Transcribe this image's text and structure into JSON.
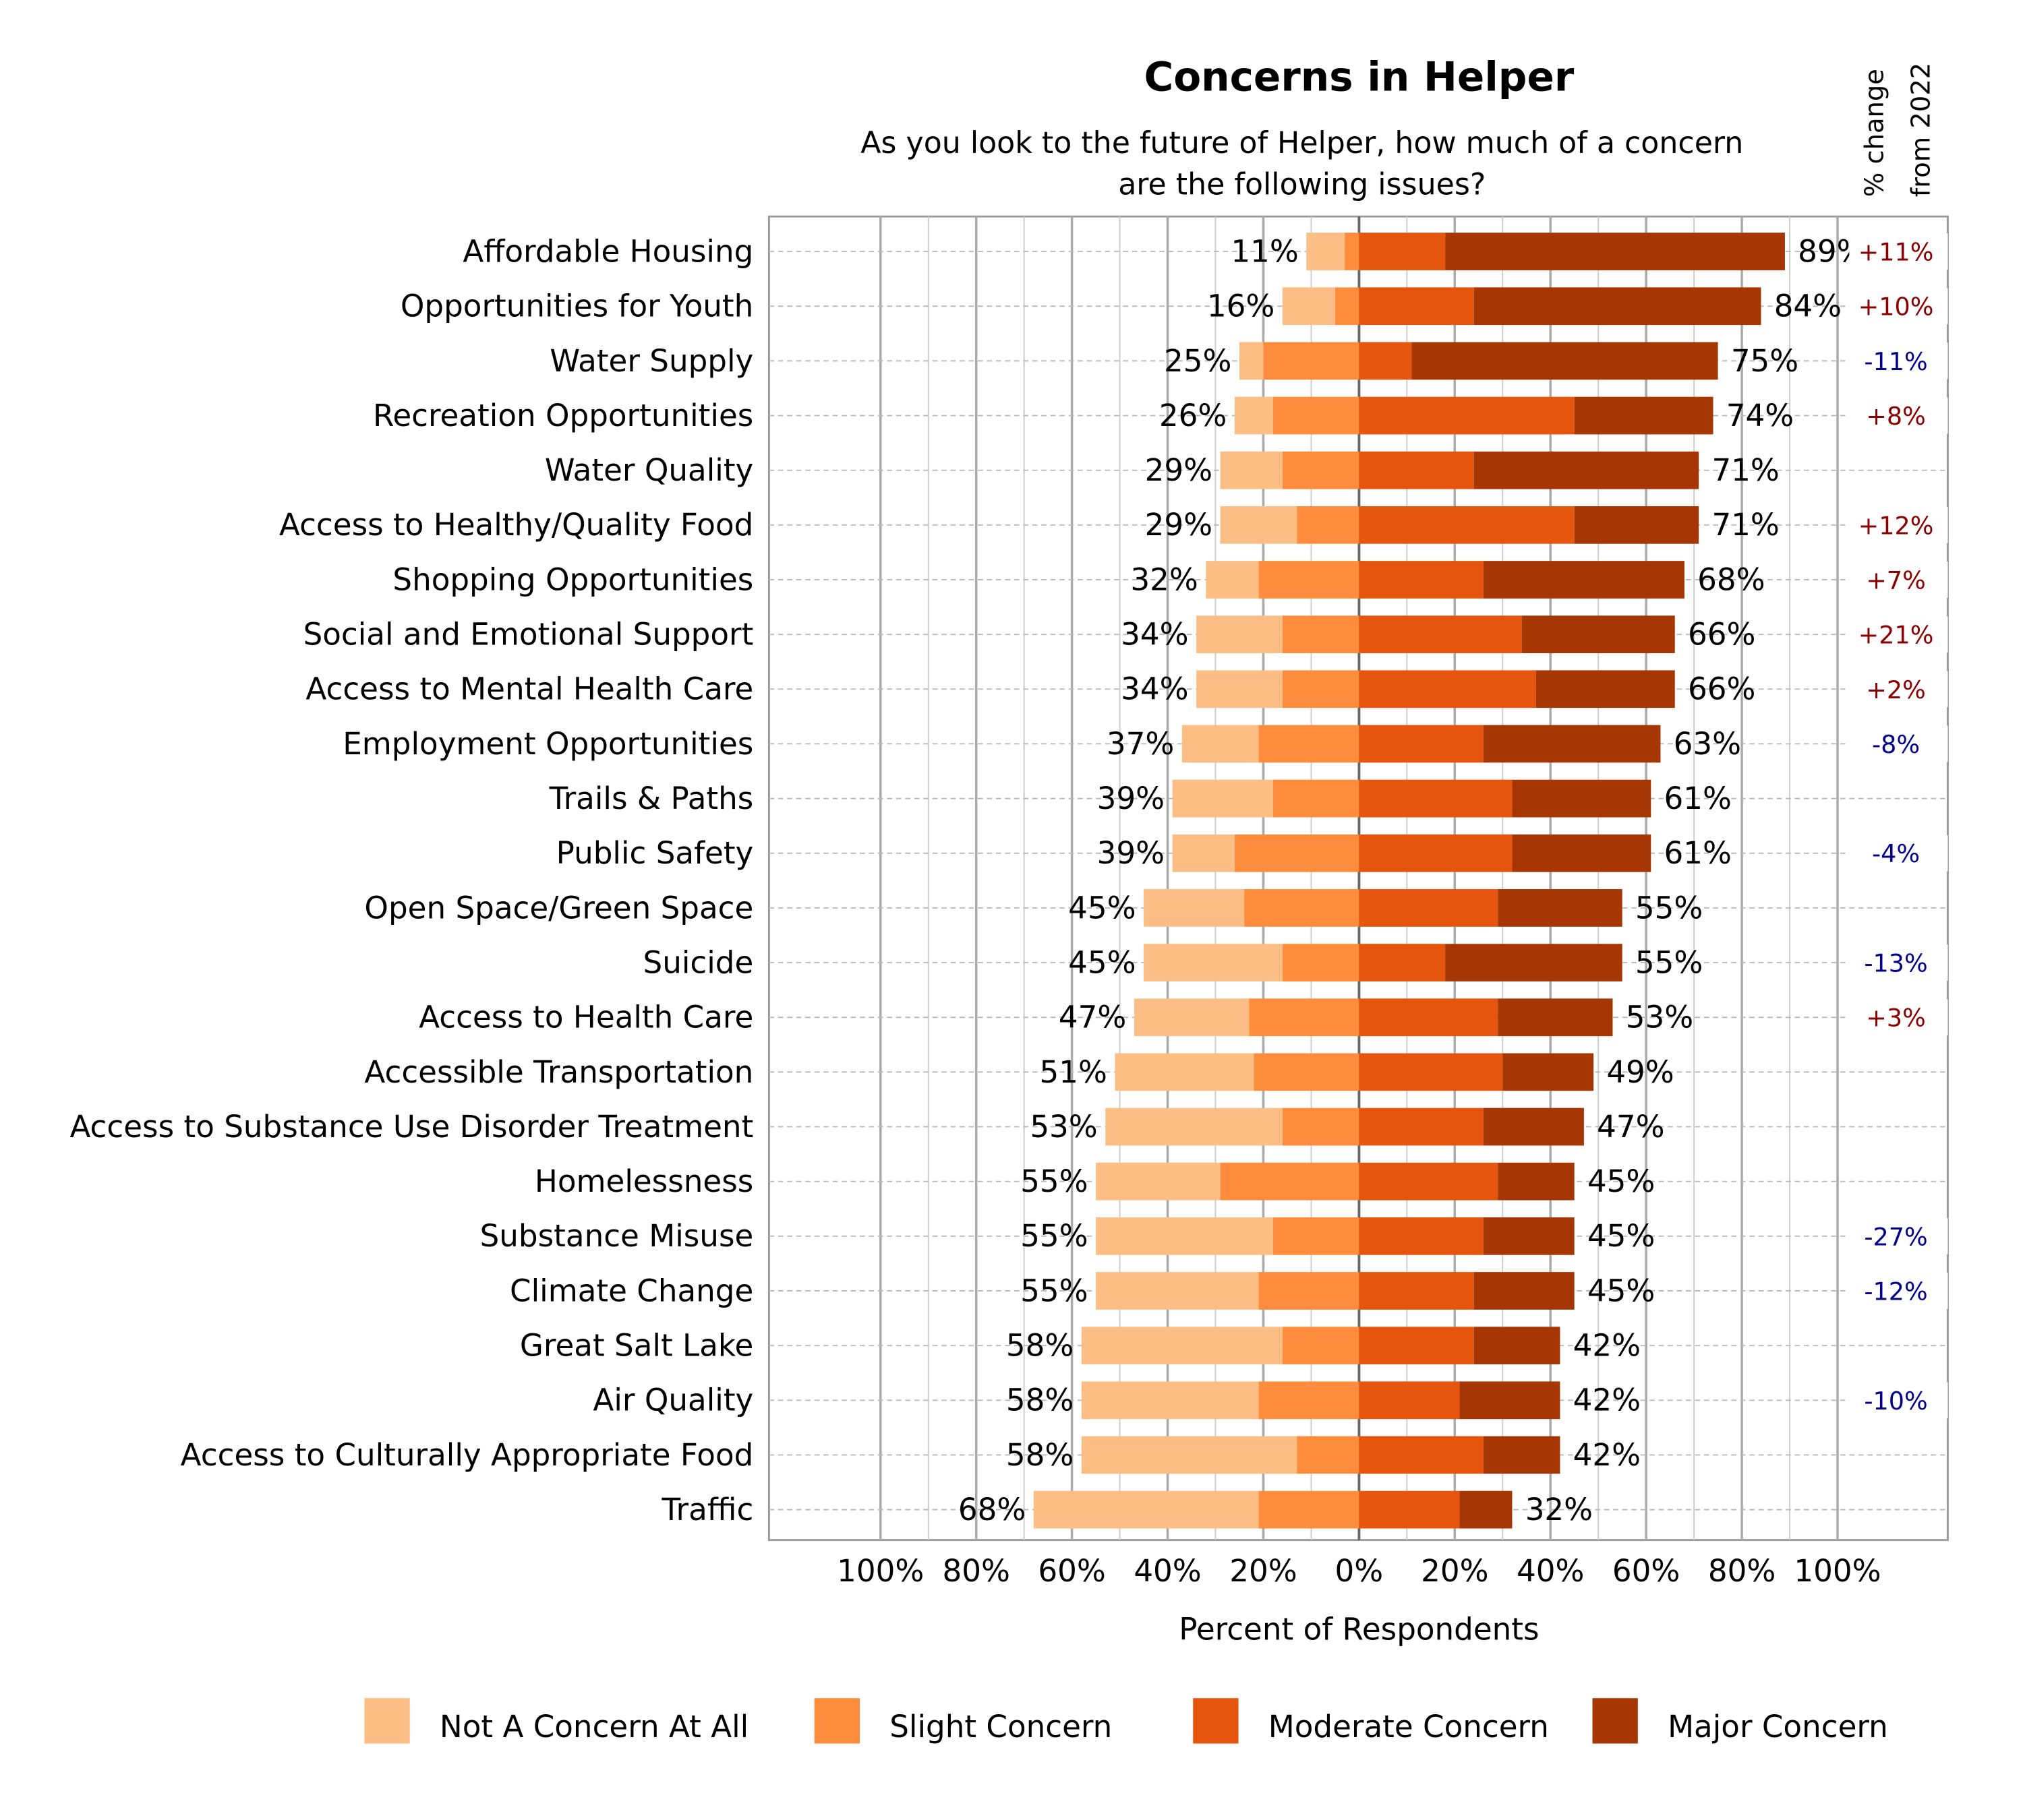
{
  "chart_data": {
    "type": "bar",
    "orientation": "horizontal",
    "stacked": "diverging",
    "title": "Concerns in Helper",
    "subtitle_line1": "As you look to the future of Helper, how much of a concern",
    "subtitle_line2": "are the following issues?",
    "xlabel": "Percent of Respondents",
    "xlim": [
      -100,
      100
    ],
    "x_ticks": [
      -100,
      -80,
      -60,
      -40,
      -20,
      0,
      20,
      40,
      60,
      80,
      100
    ],
    "x_tick_labels": [
      "100%",
      "80%",
      "60%",
      "40%",
      "20%",
      "0%",
      "20%",
      "40%",
      "60%",
      "80%",
      "100%"
    ],
    "grid": true,
    "legend_position": "bottom",
    "change_header_line1": "% change",
    "change_header_line2": "from 2022",
    "categories": [
      "Affordable Housing",
      "Opportunities for Youth",
      "Water Supply",
      "Recreation Opportunities",
      "Water Quality",
      "Access to Healthy/Quality Food",
      "Shopping Opportunities",
      "Social and Emotional Support",
      "Access to Mental Health Care",
      "Employment Opportunities",
      "Trails & Paths",
      "Public Safety",
      "Open Space/Green Space",
      "Suicide",
      "Access to Health Care",
      "Accessible Transportation",
      "Access to Substance Use Disorder Treatment",
      "Homelessness",
      "Substance Misuse",
      "Climate Change",
      "Great Salt Lake",
      "Air Quality",
      "Access to Culturally Appropriate Food",
      "Traffic"
    ],
    "series": [
      {
        "name": "Not A Concern At All",
        "side": "left",
        "color": "#FDBE85",
        "values": [
          8,
          11,
          5,
          8,
          13,
          16,
          11,
          18,
          18,
          16,
          21,
          13,
          21,
          29,
          24,
          29,
          37,
          26,
          37,
          34,
          42,
          37,
          45,
          47
        ]
      },
      {
        "name": "Slight Concern",
        "side": "left",
        "color": "#FD8D3C",
        "values": [
          3,
          5,
          20,
          18,
          16,
          13,
          21,
          16,
          16,
          21,
          18,
          26,
          24,
          16,
          23,
          22,
          16,
          29,
          18,
          21,
          16,
          21,
          13,
          21
        ]
      },
      {
        "name": "Moderate Concern",
        "side": "right",
        "color": "#E6550D",
        "values": [
          18,
          24,
          11,
          45,
          24,
          45,
          26,
          34,
          37,
          26,
          32,
          32,
          29,
          18,
          29,
          30,
          26,
          29,
          26,
          24,
          24,
          21,
          26,
          21
        ]
      },
      {
        "name": "Major Concern",
        "side": "right",
        "color": "#A63603",
        "values": [
          71,
          60,
          64,
          29,
          47,
          26,
          42,
          32,
          29,
          37,
          29,
          29,
          26,
          37,
          24,
          19,
          21,
          16,
          19,
          21,
          18,
          21,
          16,
          11
        ]
      }
    ],
    "left_totals": [
      "11%",
      "16%",
      "25%",
      "26%",
      "29%",
      "29%",
      "32%",
      "34%",
      "34%",
      "37%",
      "39%",
      "39%",
      "45%",
      "45%",
      "47%",
      "51%",
      "53%",
      "55%",
      "55%",
      "55%",
      "58%",
      "58%",
      "58%",
      "68%"
    ],
    "right_totals": [
      "89%",
      "84%",
      "75%",
      "74%",
      "71%",
      "71%",
      "68%",
      "66%",
      "66%",
      "63%",
      "61%",
      "61%",
      "55%",
      "55%",
      "53%",
      "49%",
      "47%",
      "45%",
      "45%",
      "45%",
      "42%",
      "42%",
      "42%",
      "32%"
    ],
    "change_from_2022": [
      "+11%",
      "+10%",
      "-11%",
      "+8%",
      "",
      "+12%",
      "+7%",
      "+21%",
      "+2%",
      "-8%",
      "",
      "-4%",
      "",
      "-13%",
      "+3%",
      "",
      "",
      "",
      "-27%",
      "-12%",
      "",
      "-10%",
      "",
      ""
    ],
    "colors": {
      "positive_change": "#8B0000",
      "negative_change": "#00008B"
    }
  }
}
